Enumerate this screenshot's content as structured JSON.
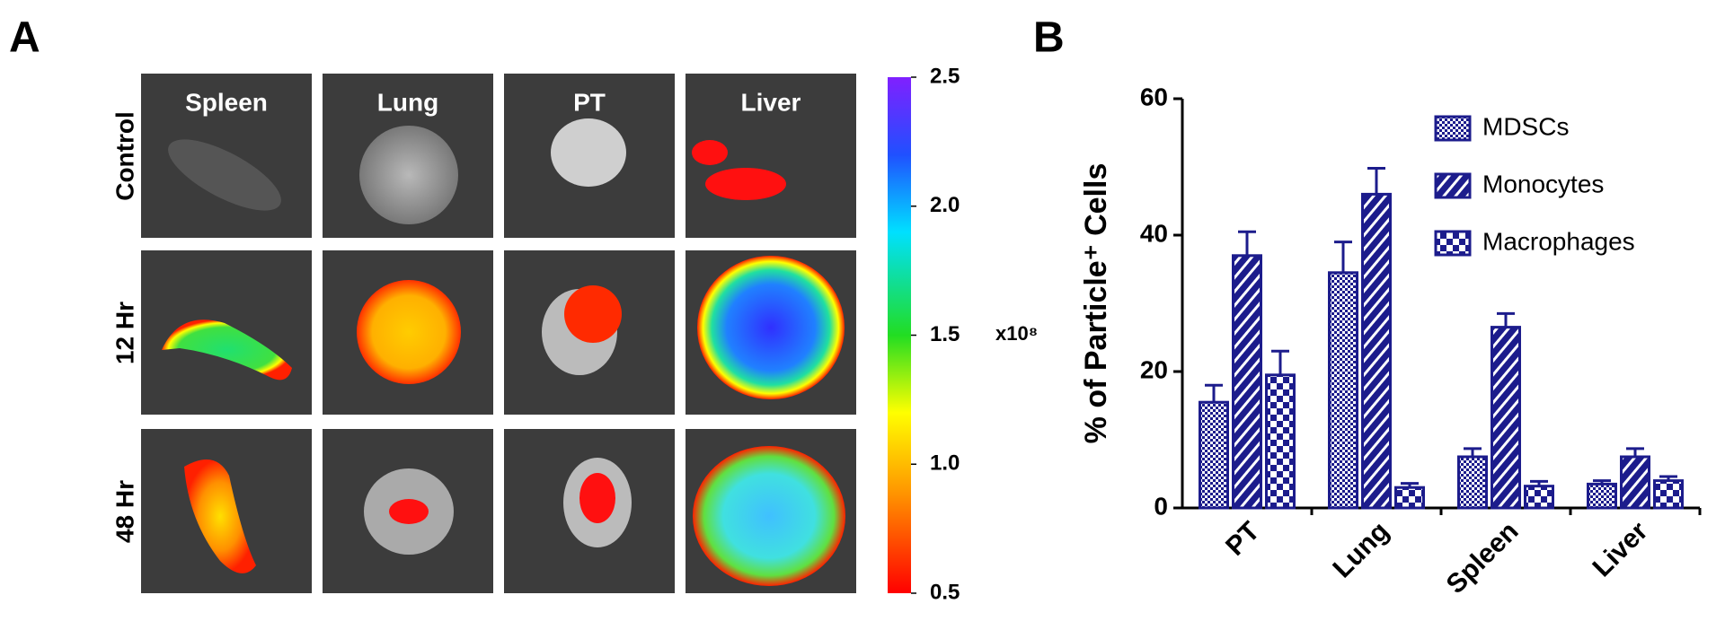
{
  "panel_a": {
    "label": "A",
    "columns": [
      "Spleen",
      "Lung",
      "PT",
      "Liver"
    ],
    "rows": [
      "Control",
      "12 Hr",
      "48 Hr"
    ],
    "colorbar_lim": [
      0.5,
      2.5
    ],
    "colorbar_ticks": [
      2.5,
      {
        "value": 2,
        "label": "2.0"
      },
      1.5,
      {
        "value": 1,
        "label": "1.0"
      },
      0.5
    ],
    "colorbar_multiplier": "x10⁸"
  },
  "chart_data": {
    "type": "bar",
    "panel_label": "B",
    "y_label": "% of Particle⁺ Cells",
    "categories": [
      "PT",
      "Lung",
      "Spleen",
      "Liver"
    ],
    "series": [
      {
        "name": "MDSCs",
        "color": "#1c1c8c",
        "pattern": "dots",
        "values": [
          15.5,
          34.5,
          7.5,
          3.5
        ],
        "errors": [
          2.5,
          4.5,
          1.2,
          0.5
        ]
      },
      {
        "name": "Monocytes",
        "color": "#1c1c8c",
        "pattern": "stripes",
        "values": [
          37,
          46,
          26.5,
          7.5
        ],
        "errors": [
          3.5,
          3.8,
          2,
          1.2
        ]
      },
      {
        "name": "Macrophages",
        "color": "#1c1c8c",
        "pattern": "checker",
        "values": [
          19.5,
          3,
          3.2,
          4
        ],
        "errors": [
          3.5,
          0.6,
          0.7,
          0.6
        ]
      }
    ],
    "ylim": [
      0,
      60
    ],
    "yticks": [
      0,
      20,
      40,
      60
    ],
    "legend": "upper right"
  }
}
